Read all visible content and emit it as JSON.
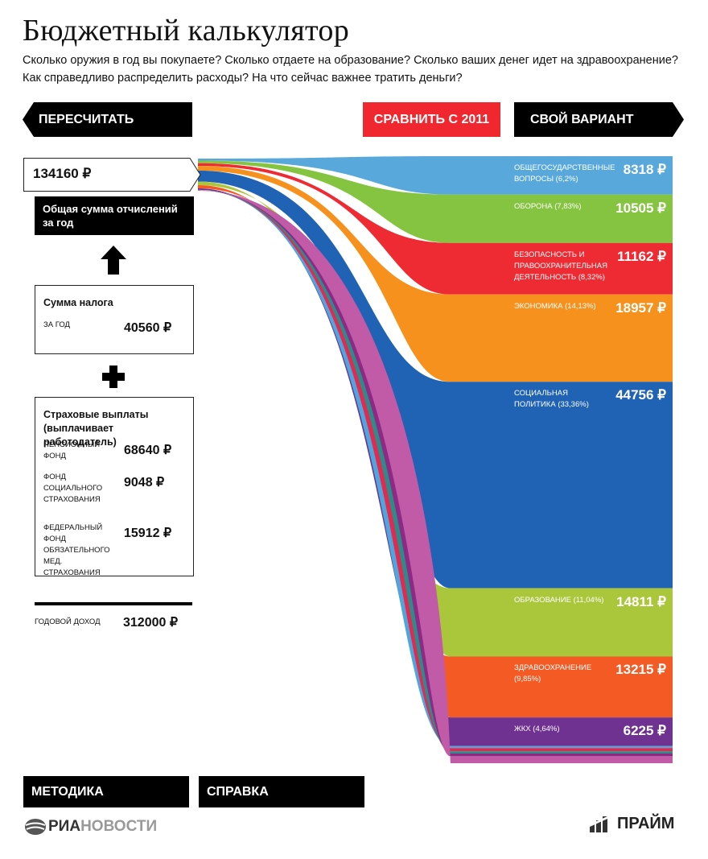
{
  "header": {
    "title": "Бюджетный калькулятор",
    "subtitle": "Сколько оружия в год вы покупаете? Сколько отдаете на образование? Сколько ваших денег идет на здравоохранение? Как справедливо распределить расходы? На что сейчас важнее тратить деньги?"
  },
  "buttons": {
    "recalc": "ПЕРЕСЧИТАТЬ",
    "compare": "СРАВНИТЬ С 2011",
    "own_variant": "СВОЙ ВАРИАНТ",
    "method": "МЕТОДИКА",
    "help": "СПРАВКА"
  },
  "colors": {
    "accent_red": "#f0272e",
    "black": "#000000"
  },
  "calculator": {
    "total_value": "134160 ₽",
    "total_caption": "Общая сумма отчислений за год",
    "arrow_icon": "arrow-up-icon",
    "plus_icon": "plus-icon",
    "tax": {
      "title": "Сумма налога",
      "label": "ЗА ГОД",
      "value": "40560 ₽"
    },
    "insurance": {
      "title": "Страховые выплаты (выплачивает работодатель)",
      "items": [
        {
          "label": "ПЕНСИОННЫЙ ФОНД",
          "value": "68640 ₽"
        },
        {
          "label": "ФОНД СОЦИАЛЬНОГО СТРАХОВАНИЯ",
          "value": "9048 ₽"
        },
        {
          "label": "ФЕДЕРАЛЬНЫЙ ФОНД ОБЯЗАТЕЛЬНОГО МЕД. СТРАХОВАНИЯ",
          "value": "15912 ₽"
        }
      ]
    },
    "income": {
      "label": "ГОДОВОЙ ДОХОД",
      "value": "312000 ₽"
    }
  },
  "categories": [
    {
      "label": "ОБЩЕГОСУДАРСТВЕННЫЕ ВОПРОСЫ (6,2%)",
      "value": "8318 ₽",
      "amount": 8318,
      "color": "#58a8dc"
    },
    {
      "label": "ОБОРОНА (7,83%)",
      "value": "10505 ₽",
      "amount": 10505,
      "color": "#85c441"
    },
    {
      "label": "БЕЗОПАСНОСТЬ И ПРАВООХРАНИТЕЛЬНАЯ ДЕЯТЕЛЬНОСТЬ (8,32%)",
      "value": "11162 ₽",
      "amount": 11162,
      "color": "#ee2a33"
    },
    {
      "label": "ЭКОНОМИКА (14,13%)",
      "value": "18957 ₽",
      "amount": 18957,
      "color": "#f7911e"
    },
    {
      "label": "СОЦИАЛЬНАЯ ПОЛИТИКА (33,36%)",
      "value": "44756 ₽",
      "amount": 44756,
      "color": "#2062b3"
    },
    {
      "label": "ОБРАЗОВАНИЕ (11,04%)",
      "value": "14811 ₽",
      "amount": 14811,
      "color": "#aac73c"
    },
    {
      "label": "ЗДРАВООХРАНЕНИЕ (9,85%)",
      "value": "13215 ₽",
      "amount": 13215,
      "color": "#f35a24"
    },
    {
      "label": "ЖКХ (4,64%)",
      "value": "6225 ₽",
      "amount": 6225,
      "color": "#6f3290"
    }
  ],
  "minor_bands": [
    {
      "amount": 400,
      "color": "#4ea6dc"
    },
    {
      "amount": 700,
      "color": "#e5284f"
    },
    {
      "amount": 500,
      "color": "#2d8b8a"
    },
    {
      "amount": 600,
      "color": "#8e2a83"
    },
    {
      "amount": 1500,
      "color": "#c15aa7"
    }
  ],
  "logos": {
    "ria_bold": "РИА",
    "ria_light": "НОВОСТИ",
    "prime": "ПРАЙМ"
  }
}
